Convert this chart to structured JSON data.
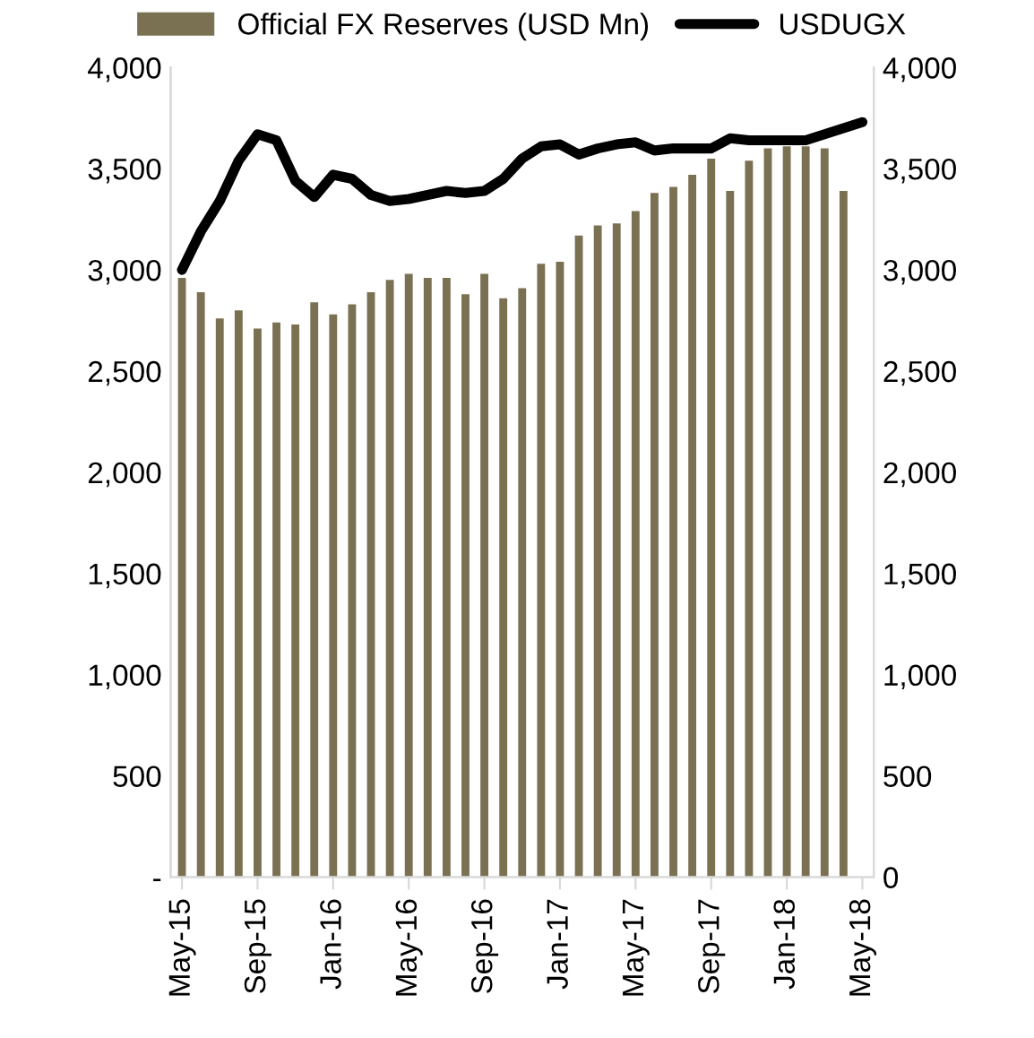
{
  "chart_data": {
    "type": "bar",
    "categories": [
      "May-15",
      null,
      null,
      null,
      "Sep-15",
      null,
      null,
      null,
      "Jan-16",
      null,
      null,
      null,
      "May-16",
      null,
      null,
      null,
      "Sep-16",
      null,
      null,
      null,
      "Jan-17",
      null,
      null,
      null,
      "May-17",
      null,
      null,
      null,
      "Sep-17",
      null,
      null,
      null,
      "Jan-18",
      null,
      null,
      null,
      "May-18"
    ],
    "series": [
      {
        "name": "Official FX Reserves (USD Mn)",
        "color": "#7a7152",
        "values": [
          2960,
          2890,
          2760,
          2800,
          2710,
          2740,
          2730,
          2840,
          2780,
          2830,
          2890,
          2950,
          2980,
          2960,
          2960,
          2880,
          2980,
          2860,
          2910,
          3030,
          3040,
          3170,
          3220,
          3230,
          3290,
          3380,
          3410,
          3470,
          3550,
          3390,
          3540,
          3600,
          3610,
          3610,
          3600,
          3390,
          null
        ]
      },
      {
        "name": "USDUGX",
        "type": "line",
        "axis": "y2",
        "color": "#000000",
        "values": [
          3000,
          3190,
          3340,
          3540,
          3670,
          3640,
          3440,
          3360,
          3470,
          3450,
          3370,
          3340,
          3350,
          3370,
          3390,
          3380,
          3390,
          3450,
          3550,
          3610,
          3620,
          3570,
          3600,
          3620,
          3630,
          3590,
          3600,
          3600,
          3600,
          3650,
          3640,
          3640,
          3640,
          3640,
          3670,
          3700,
          3730
        ]
      }
    ],
    "ylim": [
      0,
      4000
    ],
    "yticks": [
      {
        "value": 0,
        "label": "-"
      },
      {
        "value": 500,
        "label": "500"
      },
      {
        "value": 1000,
        "label": "1,000"
      },
      {
        "value": 1500,
        "label": "1,500"
      },
      {
        "value": 2000,
        "label": "2,000"
      },
      {
        "value": 2500,
        "label": "2,500"
      },
      {
        "value": 3000,
        "label": "3,000"
      },
      {
        "value": 3500,
        "label": "3,500"
      },
      {
        "value": 4000,
        "label": "4,000"
      }
    ],
    "y2lim": [
      0,
      4000
    ],
    "y2ticks": [
      0,
      {
        "value": 500,
        "label": "500"
      },
      {
        "value": 1000,
        "label": "1,000"
      },
      {
        "value": 1500,
        "label": "1,500"
      },
      {
        "value": 2000,
        "label": "2,000"
      },
      {
        "value": 2500,
        "label": "2,500"
      },
      {
        "value": 3000,
        "label": "3,000"
      },
      {
        "value": 3500,
        "label": "3,500"
      },
      {
        "value": 4000,
        "label": "4,000"
      }
    ],
    "grid": false,
    "legend": "top",
    "marker": "none",
    "line_style": "solid"
  }
}
